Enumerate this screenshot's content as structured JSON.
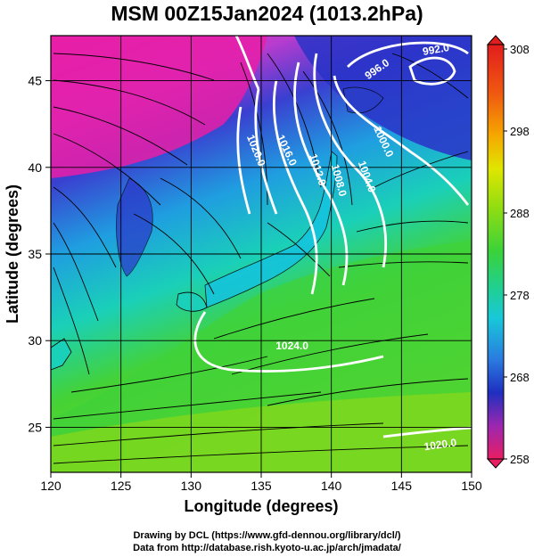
{
  "title": "MSM 00Z15Jan2024 (1013.2hPa)",
  "map": {
    "xlabel": "Longitude (degrees)",
    "ylabel": "Latitude  (degrees)",
    "x_ticks": [
      120,
      125,
      130,
      135,
      140,
      145,
      150
    ],
    "y_ticks": [
      25,
      30,
      35,
      40,
      45
    ],
    "lon_range": [
      120,
      150
    ],
    "lat_range": [
      22.4,
      47.6
    ],
    "grid": true,
    "field": "shaded temperature (K) with streamlines and white pressure contours",
    "contour_labels": [
      {
        "text": "992.0",
        "lon": 147.5,
        "lat": 46.6,
        "angle": -10
      },
      {
        "text": "996.0",
        "lon": 143.4,
        "lat": 45.5,
        "angle": -35
      },
      {
        "text": "1000.0",
        "lon": 143.5,
        "lat": 41.4,
        "angle": 65
      },
      {
        "text": "1004.0",
        "lon": 142.3,
        "lat": 39.4,
        "angle": 70
      },
      {
        "text": "1008.0",
        "lon": 140.3,
        "lat": 39.2,
        "angle": 75
      },
      {
        "text": "1012.0",
        "lon": 138.8,
        "lat": 39.8,
        "angle": 72
      },
      {
        "text": "1016.0",
        "lon": 136.6,
        "lat": 40.9,
        "angle": 65
      },
      {
        "text": "1020.0",
        "lon": 134.4,
        "lat": 40.9,
        "angle": 68
      },
      {
        "text": "1024.0",
        "lon": 137.2,
        "lat": 29.5,
        "angle": 0
      },
      {
        "text": "1020.0",
        "lon": 147.8,
        "lat": 23.8,
        "angle": -8
      }
    ]
  },
  "colorbar": {
    "labels": [
      "308",
      "298",
      "288",
      "278",
      "268",
      "258"
    ],
    "values": [
      308,
      298,
      288,
      278,
      268,
      258
    ],
    "range": [
      258,
      308
    ],
    "colors": [
      "#e91e63",
      "#9c27b0",
      "#1f2fbf",
      "#2a7be0",
      "#18c8d8",
      "#22d08a",
      "#3ad23a",
      "#8cdc14",
      "#dfe600",
      "#f5a800",
      "#f05a10",
      "#e21d1d"
    ]
  },
  "credits": {
    "line1": "Drawing by DCL (https://www.gfd-dennou.org/library/dcl/)",
    "line2": "Data from http://database.rish.kyoto-u.ac.jp/arch/jmadata/"
  }
}
